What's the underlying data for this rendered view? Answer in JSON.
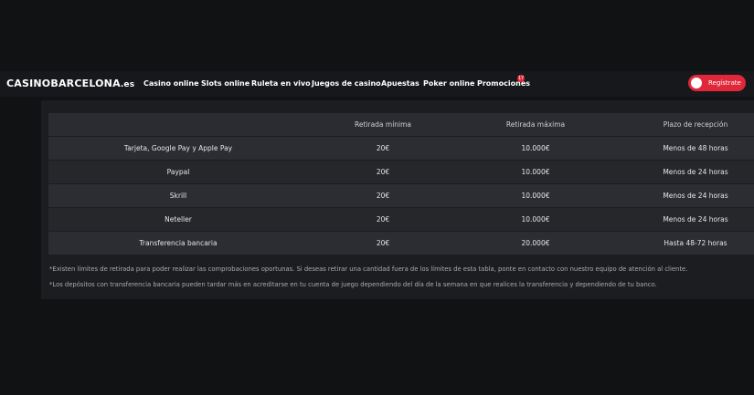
{
  "header": {
    "logo": "CASINOBARCELONA",
    "logo_suffix": ".es",
    "nav": [
      "Casino online",
      "Slots online",
      "Ruleta en vivo",
      "Juegos de casino",
      "Apuestas",
      "Poker online",
      "Promociones"
    ],
    "promo_badge": "17",
    "register_button": "Regístrate"
  },
  "table": {
    "columns": [
      "",
      "Retirada mínima",
      "Retirada máxima",
      "Plazo de recepción"
    ],
    "rows": [
      [
        "Tarjeta, Google Pay y Apple Pay",
        "20€",
        "10.000€",
        "Menos de 48 horas"
      ],
      [
        "Paypal",
        "20€",
        "10.000€",
        "Menos de 24 horas"
      ],
      [
        "Skrill",
        "20€",
        "10.000€",
        "Menos de 24 horas"
      ],
      [
        "Neteller",
        "20€",
        "10.000€",
        "Menos de 24 horas"
      ],
      [
        "Transferencia bancaria",
        "20€",
        "20.000€",
        "Hasta 48-72 horas"
      ]
    ]
  },
  "notes": [
    "*Existen límites de retirada para poder realizar las comprobaciones oportunas. Si deseas retirar una cantidad fuera de los límites de esta tabla, ponte en contacto con nuestro equipo de atención al cliente.",
    "*Los depósitos con transferencia bancaria pueden tardar más en acreditarse en tu cuenta de juego dependiendo del día de la semana en que realices la transferencia y dependiendo de tu banco."
  ]
}
